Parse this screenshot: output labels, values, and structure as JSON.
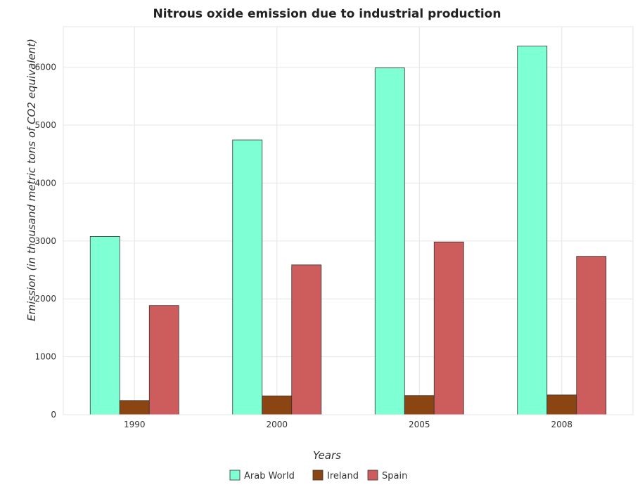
{
  "chart_data": {
    "type": "bar",
    "title": "Nitrous oxide emission due to industrial production",
    "xlabel": "Years",
    "ylabel": "Emission (in thousand metric tons of CO2 equivalent)",
    "categories": [
      "1990",
      "2000",
      "2005",
      "2008"
    ],
    "ylim": [
      0,
      6700
    ],
    "yticks": [
      "0",
      "1000",
      "2000",
      "3000",
      "4000",
      "5000",
      "6000"
    ],
    "grid": true,
    "legend_position": "bottom",
    "series": [
      {
        "name": "Arab World",
        "color": "#7fffd4",
        "values": [
          3078,
          4745,
          5988,
          6366
        ]
      },
      {
        "name": "Ireland",
        "color": "#8b4513",
        "values": [
          245,
          325,
          331,
          341
        ]
      },
      {
        "name": "Spain",
        "color": "#cd5c5c",
        "values": [
          1885,
          2587,
          2983,
          2735
        ]
      }
    ]
  }
}
